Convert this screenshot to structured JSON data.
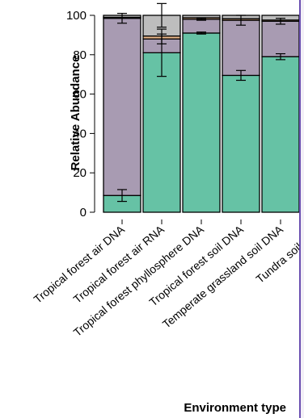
{
  "chart_data": {
    "type": "bar",
    "stacked": true,
    "ylabel": "Relative Abundance",
    "xlabel": "Environment type",
    "ylim": [
      0,
      100
    ],
    "yticks": [
      0,
      20,
      40,
      60,
      80,
      100
    ],
    "categories": [
      "Tropical forest air DNA",
      "Tropical forest air RNA",
      "Tropical forest phyllosphere DNA",
      "Tropical forest soil DNA",
      "Temperate grassland soil DNA",
      "Tundra soil DNA"
    ],
    "series": [
      {
        "color": "#66c2a5",
        "values": [
          8.5,
          81,
          91,
          69.5,
          79,
          80
        ],
        "errors": [
          3,
          12,
          0.5,
          2.5,
          1.5,
          1
        ]
      },
      {
        "color": "#a89bb2",
        "values": [
          90,
          7,
          7,
          28,
          18,
          17
        ],
        "errors": [
          2.5,
          2.5,
          0.5,
          2.5,
          1.5,
          1
        ]
      },
      {
        "color": "#e3b287",
        "values": [
          0.5,
          1.5,
          0.8,
          0.8,
          0.6,
          0.6
        ],
        "errors": [
          0,
          0,
          0,
          0,
          0,
          0
        ]
      },
      {
        "color": "#bdbdbd",
        "values": [
          1,
          10.5,
          1.2,
          1.7,
          2.4,
          2.4
        ],
        "errors": [
          0,
          6,
          0,
          0,
          0,
          0
        ]
      }
    ]
  }
}
